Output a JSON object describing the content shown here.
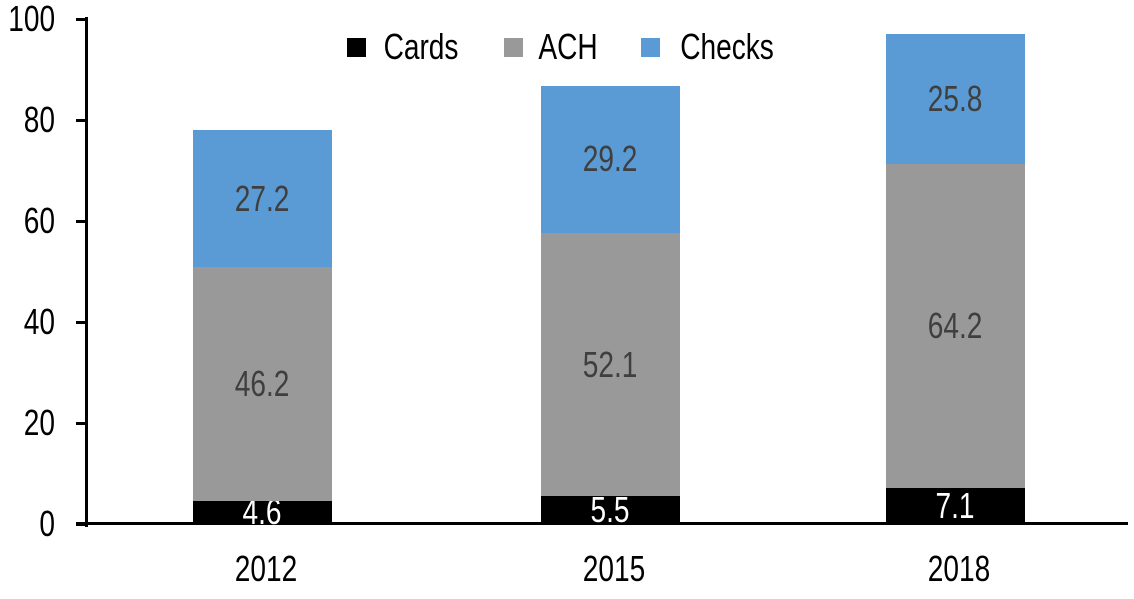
{
  "chart_data": {
    "type": "bar",
    "subtype": "stacked-column",
    "title": "",
    "xlabel": "",
    "ylabel": "",
    "categories": [
      "2012",
      "2015",
      "2018"
    ],
    "series": [
      {
        "name": "Cards",
        "color": "#000000",
        "label_color": "#FFFFFF",
        "values": [
          4.6,
          5.5,
          7.1
        ]
      },
      {
        "name": "ACH",
        "color": "#999999",
        "label_color": "#3F3F3F",
        "values": [
          46.2,
          52.1,
          64.2
        ]
      },
      {
        "name": "Checks",
        "color": "#5B9BD5",
        "label_color": "#3F3F3F",
        "values": [
          27.2,
          29.2,
          25.8
        ]
      }
    ],
    "totals": [
      78.0,
      86.8,
      97.1
    ],
    "ylim": [
      0,
      100
    ],
    "yticks": [
      0,
      20,
      40,
      60,
      80,
      100
    ],
    "grid": false,
    "legend_position": "top-center",
    "legend_labels": [
      "Cards",
      "ACH",
      "Checks"
    ],
    "axis_color": "#000000",
    "background": "#FFFFFF"
  }
}
